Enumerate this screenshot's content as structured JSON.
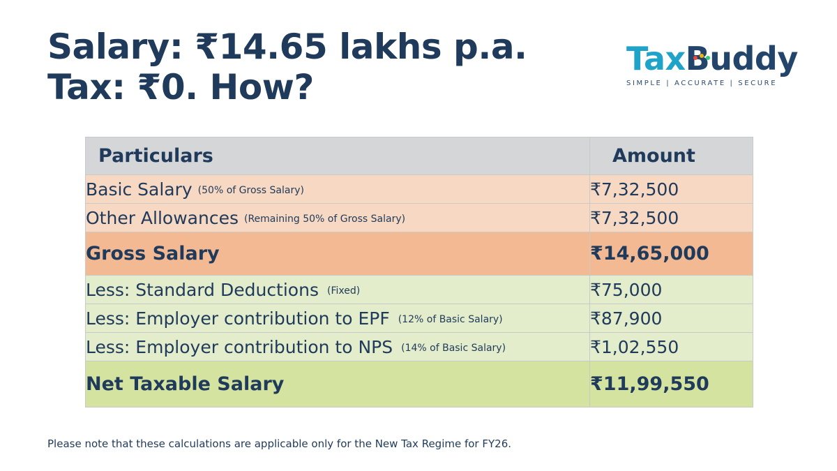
{
  "headline": {
    "line1": "Salary: ₹14.65 lakhs p.a.",
    "line2": "Tax: ₹0. How?"
  },
  "logo": {
    "part1": "Tax",
    "part2": "Buddy",
    "tagline": "SIMPLE | ACCURATE | SECURE",
    "dot_colors": [
      "#e74c3c",
      "#f5b400",
      "#2ecc71"
    ]
  },
  "table": {
    "headers": {
      "particulars": "Particulars",
      "amount": "Amount"
    },
    "rows": [
      {
        "label": "Basic Salary",
        "note": "(50% of Gross Salary)",
        "amount": "₹7,32,500"
      },
      {
        "label": "Other Allowances",
        "note": "(Remaining 50% of Gross Salary)",
        "amount": "₹7,32,500"
      },
      {
        "label": "Gross Salary",
        "note": "",
        "amount": "₹14,65,000"
      },
      {
        "label": "Less: Standard Deductions",
        "note": "(Fixed)",
        "amount": "₹75,000"
      },
      {
        "label": "Less: Employer contribution to EPF",
        "note": "(12% of Basic Salary)",
        "amount": "₹87,900"
      },
      {
        "label": "Less: Employer contribution to NPS",
        "note": "(14% of Basic Salary)",
        "amount": "₹1,02,550"
      },
      {
        "label": "Net Taxable Salary",
        "note": "",
        "amount": "₹11,99,550"
      }
    ],
    "colors": {
      "header": "#d5d6d8",
      "peach": "#f7d8c2",
      "peach_strong": "#f3b993",
      "green": "#e3eccb",
      "green_strong": "#d4e39f",
      "text": "#1f3a5a"
    }
  },
  "footnote": "Please note that these calculations are applicable only for the New Tax Regime for FY26."
}
